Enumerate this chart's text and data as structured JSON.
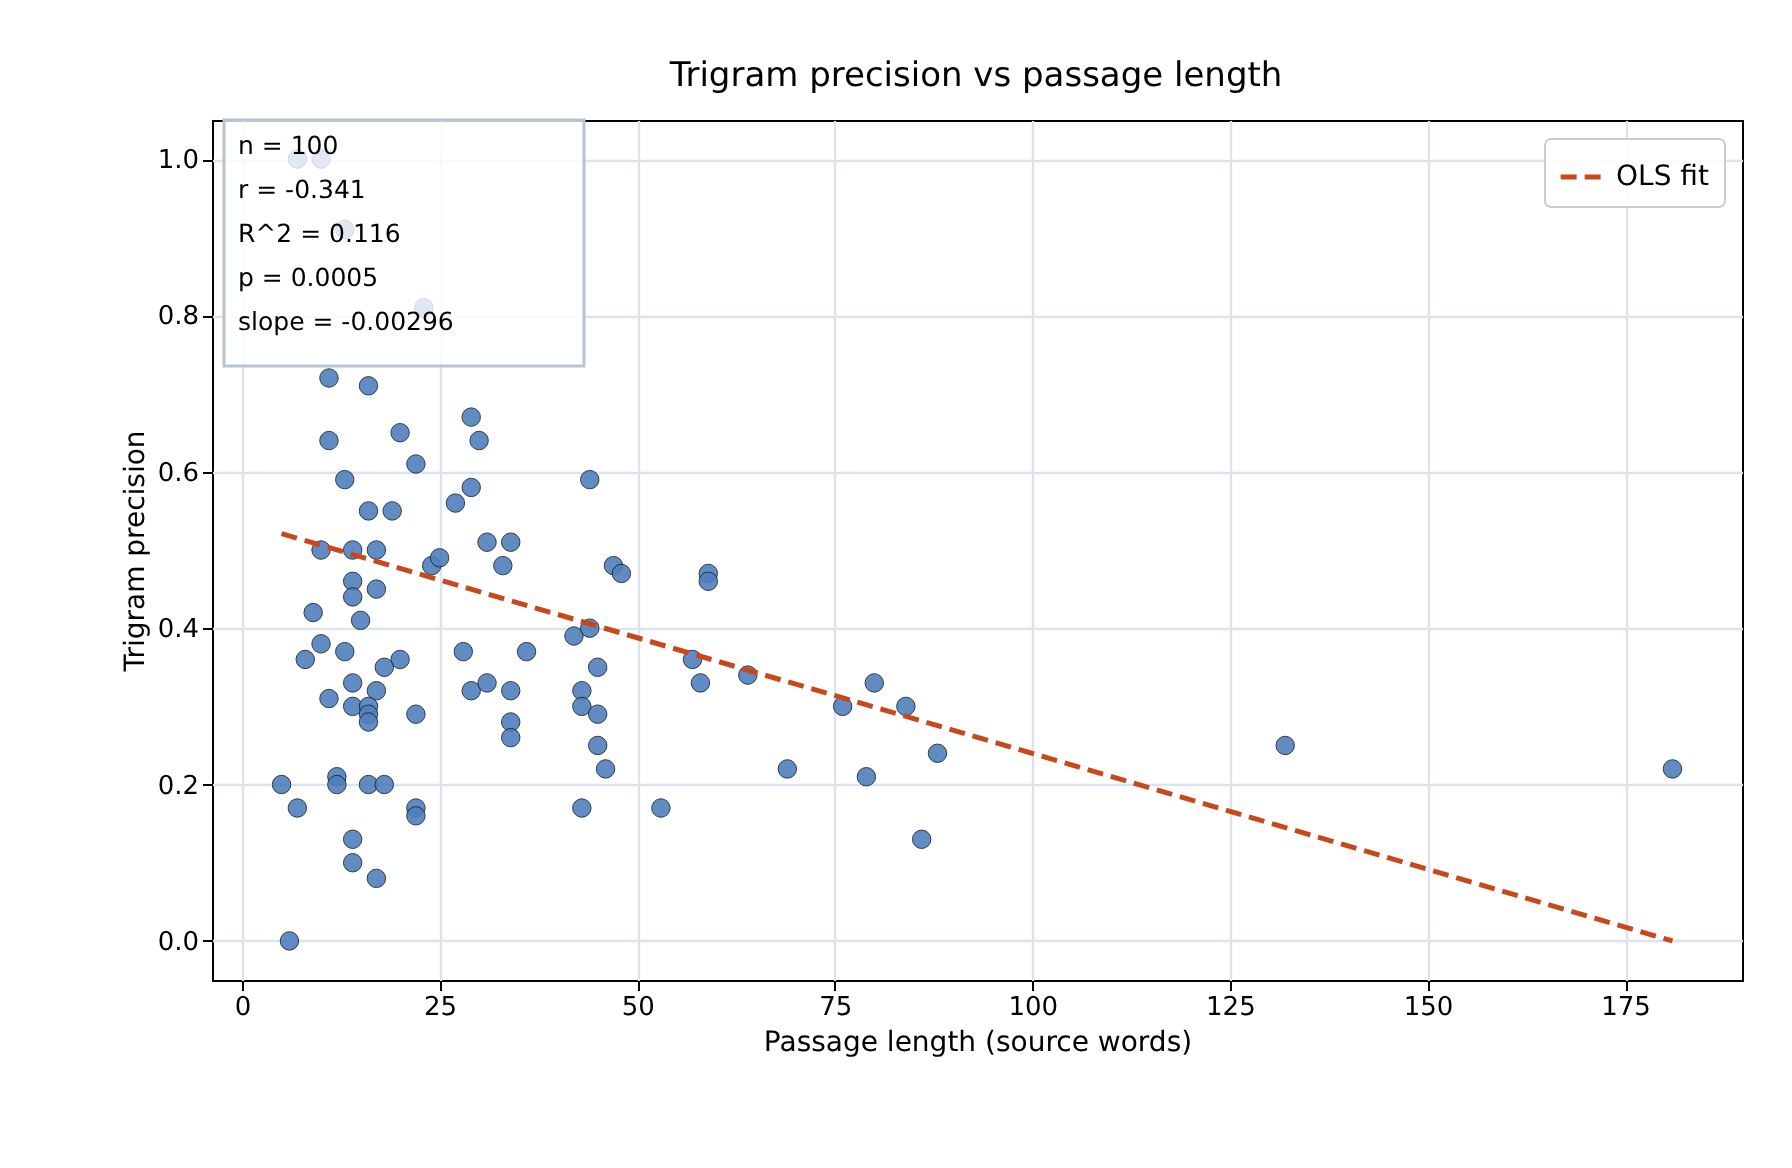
{
  "chart_data": {
    "type": "scatter",
    "title": "Trigram precision vs passage length",
    "xlabel": "Passage length (source words)",
    "ylabel": "Trigram precision",
    "xlim": [
      -3.8,
      189.8
    ],
    "ylim": [
      -0.05,
      1.05
    ],
    "xticks": [
      0,
      25,
      50,
      75,
      100,
      125,
      150,
      175
    ],
    "yticks": [
      {
        "value": 0,
        "label": "0.0"
      },
      {
        "value": 0.2,
        "label": "0.2"
      },
      {
        "value": 0.4,
        "label": "0.4"
      },
      {
        "value": 0.6,
        "label": "0.6"
      },
      {
        "value": 0.8,
        "label": "0.8"
      },
      {
        "value": 1,
        "label": "1.0"
      }
    ],
    "grid": true,
    "legend": "top right",
    "annotations": [
      "n = 100",
      "r = -0.341",
      "R^2 = 0.116",
      "p = 0.0005",
      "slope = -0.00296"
    ],
    "series": [
      {
        "color": "#4f7fbd",
        "marker": "circle",
        "x": [
          7,
          10,
          13,
          23,
          11,
          16,
          11,
          20,
          22,
          29,
          30,
          13,
          27,
          29,
          44,
          16,
          19,
          10,
          14,
          17,
          24,
          25,
          31,
          34,
          33,
          47,
          48,
          59,
          59,
          14,
          17,
          14,
          15,
          9,
          10,
          8,
          13,
          20,
          18,
          14,
          17,
          11,
          14,
          16,
          16,
          16,
          22,
          28,
          36,
          29,
          31,
          34,
          34,
          34,
          42,
          44,
          43,
          43,
          45,
          45,
          45,
          46,
          43,
          53,
          57,
          58,
          64,
          69,
          76,
          80,
          84,
          79,
          88,
          86,
          132,
          181,
          5,
          7,
          12,
          12,
          16,
          18,
          22,
          22,
          14,
          14,
          17,
          6
        ],
        "values": [
          1.0,
          1.0,
          0.91,
          0.81,
          0.72,
          0.71,
          0.64,
          0.65,
          0.61,
          0.67,
          0.64,
          0.59,
          0.56,
          0.58,
          0.59,
          0.55,
          0.55,
          0.5,
          0.5,
          0.5,
          0.48,
          0.49,
          0.51,
          0.51,
          0.48,
          0.48,
          0.47,
          0.47,
          0.46,
          0.46,
          0.45,
          0.44,
          0.41,
          0.42,
          0.38,
          0.36,
          0.37,
          0.36,
          0.35,
          0.33,
          0.32,
          0.31,
          0.3,
          0.3,
          0.29,
          0.28,
          0.29,
          0.37,
          0.37,
          0.32,
          0.33,
          0.32,
          0.28,
          0.26,
          0.39,
          0.4,
          0.32,
          0.3,
          0.35,
          0.29,
          0.25,
          0.22,
          0.17,
          0.17,
          0.36,
          0.33,
          0.34,
          0.22,
          0.3,
          0.33,
          0.3,
          0.21,
          0.24,
          0.13,
          0.25,
          0.22,
          0.2,
          0.17,
          0.21,
          0.2,
          0.2,
          0.2,
          0.17,
          0.16,
          0.13,
          0.1,
          0.08,
          0.0
        ]
      },
      {
        "type": "line",
        "name": "OLS fit",
        "color": "#c8481c",
        "line_style": "dashed",
        "x": [
          5,
          181
        ],
        "values": [
          0.521,
          0.0
        ]
      }
    ]
  }
}
